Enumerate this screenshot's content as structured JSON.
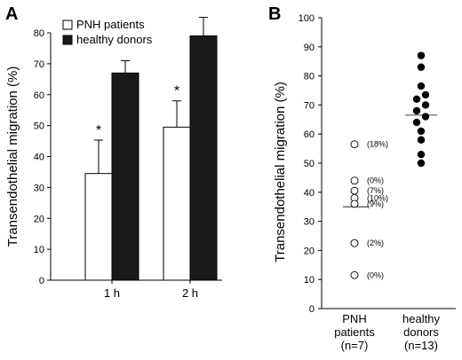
{
  "chart_data": [
    {
      "panel": "A",
      "type": "bar",
      "ylabel": "Transendothelial migration (%)",
      "ylim": [
        0,
        80
      ],
      "yticks": [
        "0",
        "10",
        "20",
        "30",
        "40",
        "50",
        "60",
        "70",
        "80"
      ],
      "categories": [
        "1 h",
        "2 h"
      ],
      "series": [
        {
          "name": "PNH patients",
          "values": [
            34.5,
            49.5
          ],
          "errors": [
            10.8,
            8.5
          ],
          "color": "#ffffff"
        },
        {
          "name": "healthy donors",
          "values": [
            67,
            79
          ],
          "errors": [
            4,
            6
          ],
          "color": "#1a1a1a"
        }
      ],
      "annotations": [
        "*",
        "*"
      ],
      "legend_position": "top-left"
    },
    {
      "panel": "B",
      "type": "scatter",
      "ylabel": "Transendothelial migration (%)",
      "ylim": [
        0,
        100
      ],
      "yticks": [
        "0",
        "10",
        "20",
        "30",
        "40",
        "50",
        "60",
        "70",
        "80",
        "90",
        "100"
      ],
      "categories": [
        "PNH\npatients\n(n=7)",
        "healthy\ndonors\n(n=13)"
      ],
      "category_lines": [
        [
          "PNH",
          "patients",
          "(n=7)"
        ],
        [
          "healthy",
          "donors",
          "(n=13)"
        ]
      ],
      "groups": [
        {
          "name": "PNH patients",
          "values": [
            56.5,
            44,
            40.5,
            38,
            36,
            22.5,
            11.5
          ],
          "labels": [
            "(18%)",
            "(0%)",
            "(7%)",
            "(10%)",
            "(9%)",
            "(2%)",
            "(0%)"
          ],
          "mean": 35,
          "marker": "open-circle"
        },
        {
          "name": "healthy donors",
          "values": [
            87,
            83,
            76.5,
            73.5,
            72,
            70,
            68,
            66,
            64,
            61,
            58,
            53,
            50
          ],
          "mean": 66.5,
          "marker": "filled-circle"
        }
      ]
    }
  ]
}
